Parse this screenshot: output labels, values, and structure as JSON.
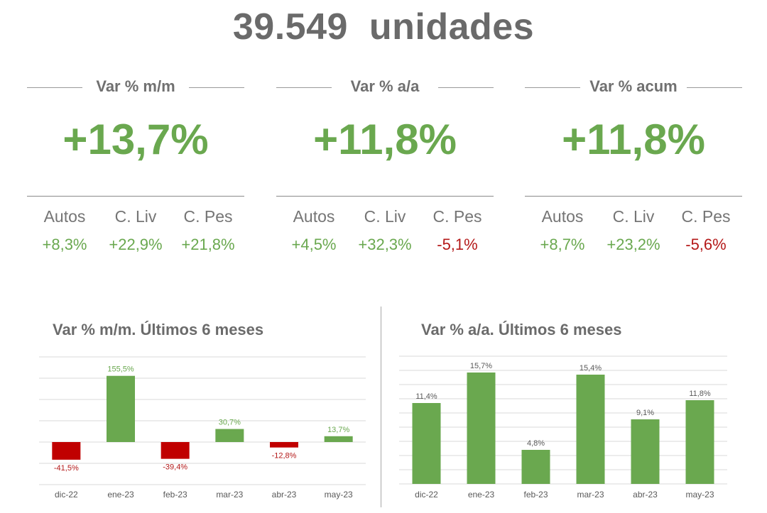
{
  "headline": {
    "number": "39.549",
    "unit": "unidades"
  },
  "kpis": [
    {
      "label": "Var % m/m",
      "value": "+13,7%",
      "subs": [
        {
          "name": "Autos",
          "value": "+8,3%",
          "sign": "pos"
        },
        {
          "name": "C. Liv",
          "value": "+22,9%",
          "sign": "pos"
        },
        {
          "name": "C. Pes",
          "value": "+21,8%",
          "sign": "pos"
        }
      ]
    },
    {
      "label": "Var % a/a",
      "value": "+11,8%",
      "subs": [
        {
          "name": "Autos",
          "value": "+4,5%",
          "sign": "pos"
        },
        {
          "name": "C. Liv",
          "value": "+32,3%",
          "sign": "pos"
        },
        {
          "name": "C. Pes",
          "value": "-5,1%",
          "sign": "neg"
        }
      ]
    },
    {
      "label": "Var % acum",
      "value": "+11,8%",
      "subs": [
        {
          "name": "Autos",
          "value": "+8,7%",
          "sign": "pos"
        },
        {
          "name": "C. Liv",
          "value": "+23,2%",
          "sign": "pos"
        },
        {
          "name": "C. Pes",
          "value": "-5,6%",
          "sign": "neg"
        }
      ]
    }
  ],
  "colors": {
    "positive": "#6aa84f",
    "negative": "#c00000",
    "negative_label": "#b41919",
    "grid": "#d9d9d9",
    "text": "#595959"
  },
  "chart_data": [
    {
      "type": "bar",
      "title": "Var % m/m. Últimos 6 meses",
      "categories": [
        "dic-22",
        "ene-23",
        "feb-23",
        "mar-23",
        "abr-23",
        "may-23"
      ],
      "values": [
        -41.5,
        155.5,
        -39.4,
        30.7,
        -12.8,
        13.7
      ],
      "labels": [
        "-41,5%",
        "155,5%",
        "-39,4%",
        "30,7%",
        "-12,8%",
        "13,7%"
      ],
      "ylim": [
        -100,
        200
      ],
      "grid": true
    },
    {
      "type": "bar",
      "title": "Var % a/a. Últimos 6 meses",
      "categories": [
        "dic-22",
        "ene-23",
        "feb-23",
        "mar-23",
        "abr-23",
        "may-23"
      ],
      "values": [
        11.4,
        15.7,
        4.8,
        15.4,
        9.1,
        11.8
      ],
      "labels": [
        "11,4%",
        "15,7%",
        "4,8%",
        "15,4%",
        "9,1%",
        "11,8%"
      ],
      "ylim": [
        0,
        18
      ],
      "grid": true
    }
  ]
}
